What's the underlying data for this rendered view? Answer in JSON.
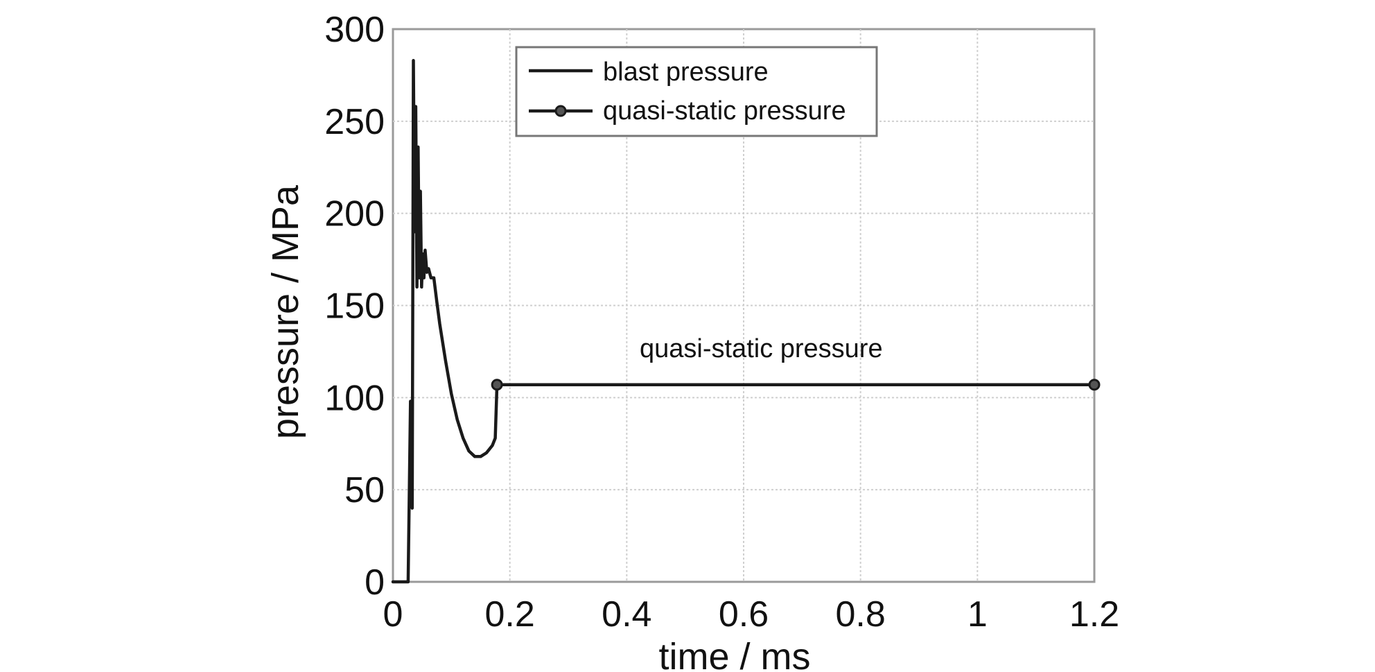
{
  "chart_data": {
    "type": "line",
    "title": "",
    "xlabel": "time / ms",
    "ylabel": "pressure / MPa",
    "xlim": [
      0,
      1.2
    ],
    "ylim": [
      0,
      300
    ],
    "x_ticks": [
      "0",
      "0.2",
      "0.4",
      "0.6",
      "0.8",
      "1",
      "1.2"
    ],
    "y_ticks": [
      "0",
      "50",
      "100",
      "150",
      "200",
      "250",
      "300"
    ],
    "grid": true,
    "legend_position": "top-center",
    "annotations": [
      {
        "text": "quasi-static pressure",
        "x": 0.63,
        "y": 122
      }
    ],
    "series": [
      {
        "name": "blast pressure",
        "marker": "none",
        "color": "#1a1a1a",
        "x": [
          0,
          0.02,
          0.026,
          0.03,
          0.033,
          0.035,
          0.037,
          0.039,
          0.041,
          0.043,
          0.045,
          0.047,
          0.049,
          0.051,
          0.053,
          0.055,
          0.058,
          0.061,
          0.065,
          0.07,
          0.075,
          0.08,
          0.09,
          0.1,
          0.11,
          0.12,
          0.13,
          0.14,
          0.15,
          0.16,
          0.17,
          0.175,
          0.178
        ],
        "y": [
          0,
          0,
          0,
          98,
          40,
          283,
          190,
          258,
          160,
          236,
          165,
          212,
          160,
          178,
          165,
          180,
          168,
          170,
          165,
          165,
          152,
          140,
          120,
          102,
          88,
          78,
          71,
          68,
          68,
          70,
          74,
          78,
          107
        ]
      },
      {
        "name": "quasi-static pressure",
        "marker": "circle",
        "color": "#1a1a1a",
        "x": [
          0.178,
          1.2
        ],
        "y": [
          107,
          107
        ]
      }
    ]
  }
}
